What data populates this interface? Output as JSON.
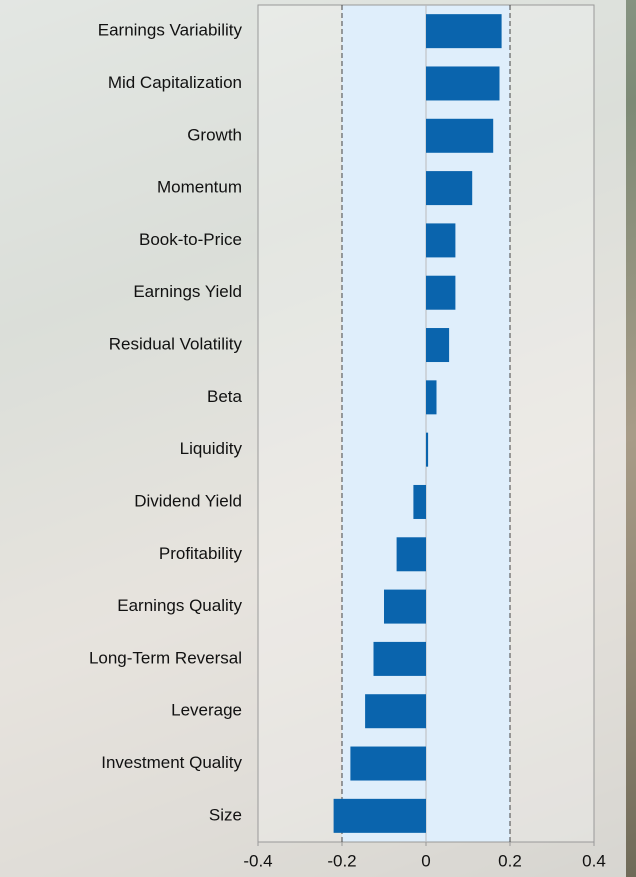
{
  "chart_data": {
    "type": "barh",
    "categories": [
      "Earnings Variability",
      "Mid Capitalization",
      "Growth",
      "Momentum",
      "Book-to-Price",
      "Earnings Yield",
      "Residual Volatility",
      "Beta",
      "Liquidity",
      "Dividend Yield",
      "Profitability",
      "Earnings Quality",
      "Long-Term Reversal",
      "Leverage",
      "Investment Quality",
      "Size"
    ],
    "values": [
      0.18,
      0.175,
      0.16,
      0.11,
      0.07,
      0.07,
      0.055,
      0.025,
      0.005,
      -0.03,
      -0.07,
      -0.1,
      -0.125,
      -0.145,
      -0.18,
      -0.22
    ],
    "color": "#0a64ad",
    "xlim": [
      -0.4,
      0.4
    ],
    "xticks": [
      -0.4,
      -0.2,
      0,
      0.2,
      0.4
    ],
    "reference_lines": [
      -0.2,
      0.2
    ],
    "band_color": "#dfeefb"
  }
}
